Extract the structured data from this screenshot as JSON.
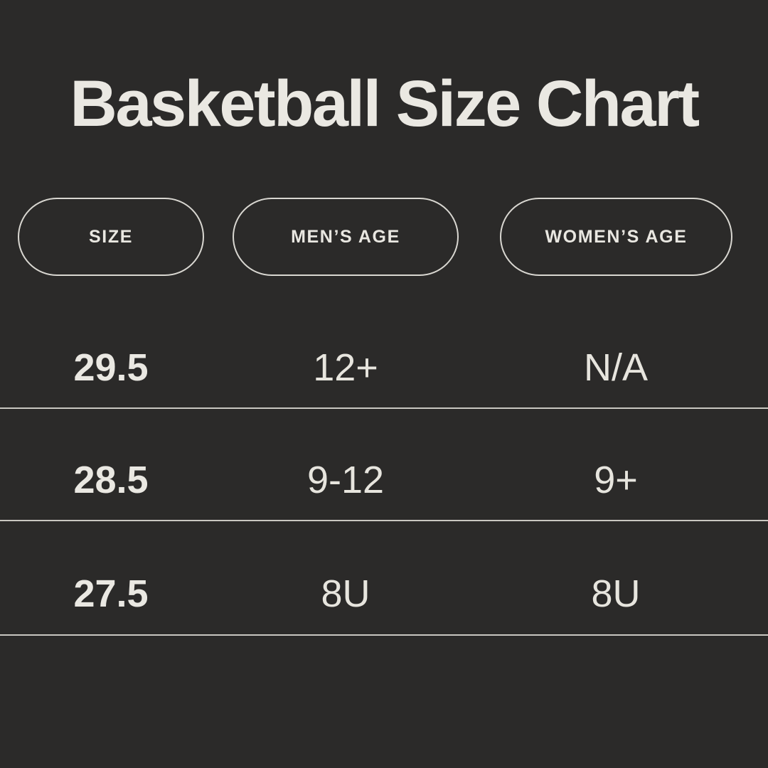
{
  "chart_data": {
    "type": "table",
    "title": "Basketball Size Chart",
    "columns": [
      "SIZE",
      "MEN’S AGE",
      "WOMEN’S AGE"
    ],
    "rows": [
      [
        "29.5",
        "12+",
        "N/A"
      ],
      [
        "28.5",
        "9-12",
        "9+"
      ],
      [
        "27.5",
        "8U",
        "8U"
      ]
    ]
  },
  "colors": {
    "background": "#2b2a29",
    "text_cream": "#eae8e2",
    "pill_border": "#d9d7d1",
    "divider": "#c9c7c1"
  }
}
